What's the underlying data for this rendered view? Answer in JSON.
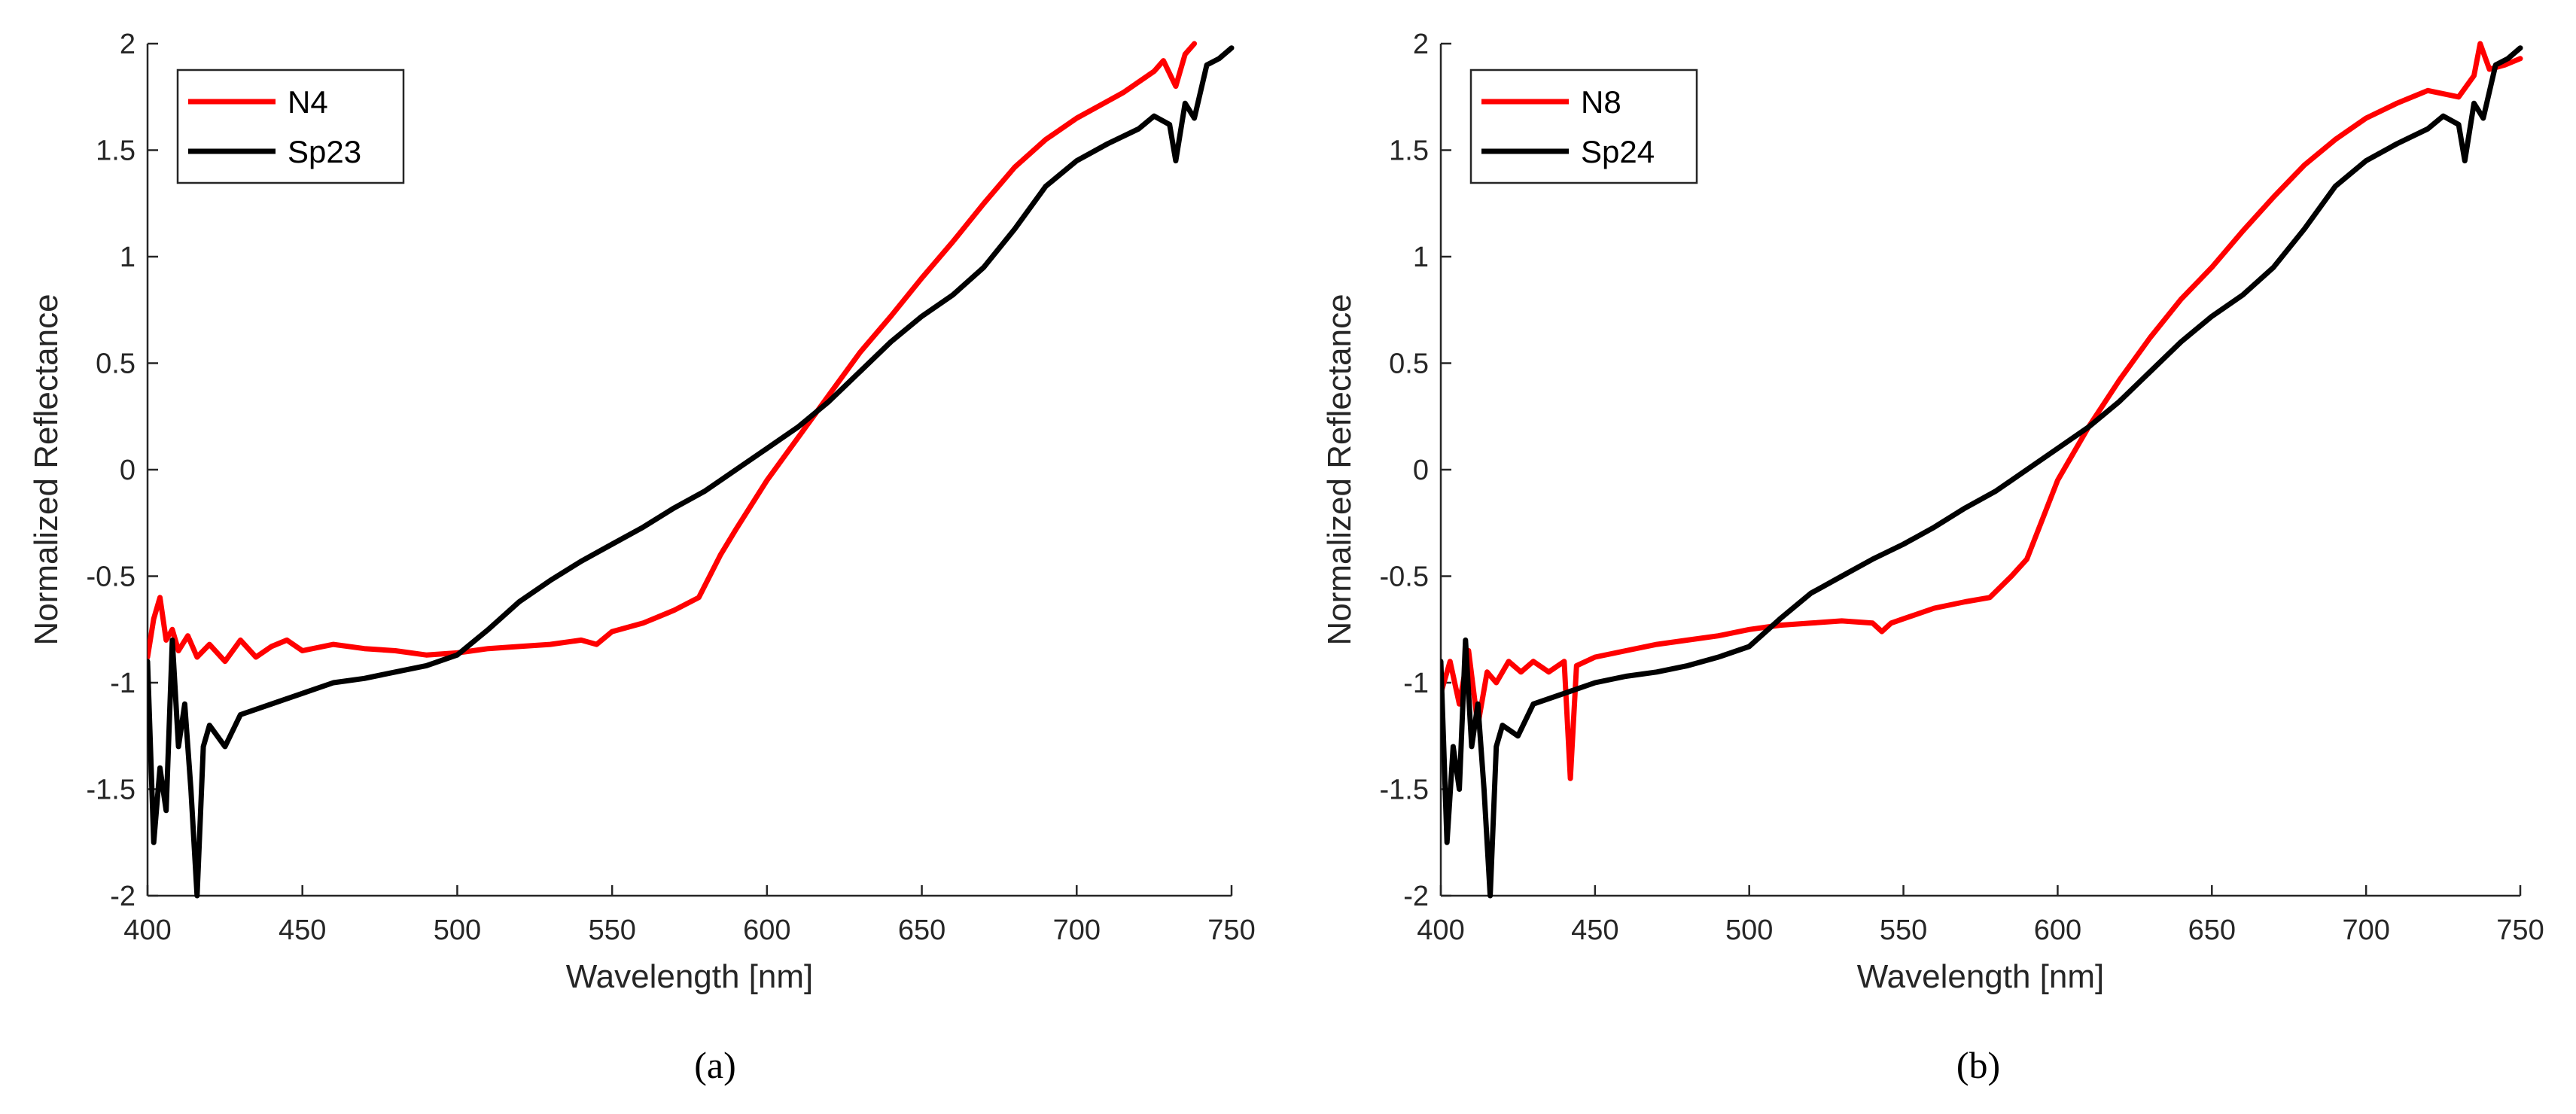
{
  "chart_data": [
    {
      "type": "line",
      "panel_label": "(a)",
      "xlabel": "Wavelength [nm]",
      "ylabel": "Normalized Reflectance",
      "xlim": [
        400,
        750
      ],
      "ylim": [
        -2,
        2
      ],
      "xticks": [
        400,
        450,
        500,
        550,
        600,
        650,
        700,
        750
      ],
      "yticks": [
        -2,
        -1.5,
        -1,
        -0.5,
        0,
        0.5,
        1,
        1.5,
        2
      ],
      "xtick_labels": [
        "400",
        "450",
        "500",
        "550",
        "600",
        "650",
        "700",
        "750"
      ],
      "ytick_labels": [
        "-2",
        "-1.5",
        "-1",
        "-0.5",
        "0",
        "0.5",
        "1",
        "1.5",
        "2"
      ],
      "legend_position": "top-left",
      "series": [
        {
          "name": "N4",
          "color": "#ff0000",
          "x": [
            400,
            402,
            404,
            406,
            408,
            410,
            413,
            416,
            420,
            425,
            430,
            435,
            440,
            445,
            450,
            460,
            470,
            480,
            490,
            500,
            510,
            520,
            530,
            540,
            545,
            550,
            560,
            570,
            578,
            585,
            590,
            600,
            610,
            620,
            630,
            640,
            650,
            660,
            670,
            680,
            690,
            700,
            710,
            715,
            720,
            725,
            728,
            732,
            735,
            738
          ],
          "y": [
            -0.88,
            -0.7,
            -0.6,
            -0.8,
            -0.75,
            -0.85,
            -0.78,
            -0.88,
            -0.82,
            -0.9,
            -0.8,
            -0.88,
            -0.83,
            -0.8,
            -0.85,
            -0.82,
            -0.84,
            -0.85,
            -0.87,
            -0.86,
            -0.84,
            -0.83,
            -0.82,
            -0.8,
            -0.82,
            -0.76,
            -0.72,
            -0.66,
            -0.6,
            -0.4,
            -0.28,
            -0.05,
            0.15,
            0.35,
            0.55,
            0.72,
            0.9,
            1.07,
            1.25,
            1.42,
            1.55,
            1.65,
            1.73,
            1.77,
            1.82,
            1.87,
            1.92,
            1.8,
            1.95,
            2.0
          ]
        },
        {
          "name": "Sp23",
          "color": "#000000",
          "x": [
            400,
            402,
            404,
            406,
            408,
            410,
            412,
            414,
            416,
            418,
            420,
            425,
            430,
            440,
            450,
            460,
            470,
            480,
            490,
            500,
            510,
            520,
            530,
            540,
            550,
            560,
            570,
            580,
            590,
            600,
            610,
            620,
            630,
            640,
            650,
            660,
            670,
            680,
            690,
            700,
            710,
            720,
            725,
            730,
            732,
            735,
            738,
            742,
            746,
            750
          ],
          "y": [
            -0.9,
            -1.75,
            -1.4,
            -1.6,
            -0.8,
            -1.3,
            -1.1,
            -1.5,
            -2.0,
            -1.3,
            -1.2,
            -1.3,
            -1.15,
            -1.1,
            -1.05,
            -1.0,
            -0.98,
            -0.95,
            -0.92,
            -0.87,
            -0.75,
            -0.62,
            -0.52,
            -0.43,
            -0.35,
            -0.27,
            -0.18,
            -0.1,
            0.0,
            0.1,
            0.2,
            0.32,
            0.46,
            0.6,
            0.72,
            0.82,
            0.95,
            1.13,
            1.33,
            1.45,
            1.53,
            1.6,
            1.66,
            1.62,
            1.45,
            1.72,
            1.65,
            1.9,
            1.93,
            1.98
          ]
        }
      ]
    },
    {
      "type": "line",
      "panel_label": "(b)",
      "xlabel": "Wavelength [nm]",
      "ylabel": "Normalized Reflectance",
      "xlim": [
        400,
        750
      ],
      "ylim": [
        -2,
        2
      ],
      "xticks": [
        400,
        450,
        500,
        550,
        600,
        650,
        700,
        750
      ],
      "yticks": [
        -2,
        -1.5,
        -1,
        -0.5,
        0,
        0.5,
        1,
        1.5,
        2
      ],
      "xtick_labels": [
        "400",
        "450",
        "500",
        "550",
        "600",
        "650",
        "700",
        "750"
      ],
      "ytick_labels": [
        "-2",
        "-1.5",
        "-1",
        "-0.5",
        "0",
        "0.5",
        "1",
        "1.5",
        "2"
      ],
      "legend_position": "top-left",
      "series": [
        {
          "name": "N8",
          "color": "#ff0000",
          "x": [
            400,
            403,
            406,
            409,
            412,
            415,
            418,
            422,
            426,
            430,
            435,
            440,
            442,
            444,
            450,
            460,
            470,
            480,
            490,
            500,
            510,
            520,
            530,
            540,
            543,
            546,
            550,
            560,
            570,
            578,
            585,
            590,
            600,
            610,
            620,
            630,
            640,
            650,
            660,
            670,
            680,
            690,
            700,
            710,
            720,
            730,
            735,
            737,
            740,
            745,
            750
          ],
          "y": [
            -1.05,
            -0.9,
            -1.1,
            -0.85,
            -1.2,
            -0.95,
            -1.0,
            -0.9,
            -0.95,
            -0.9,
            -0.95,
            -0.9,
            -1.45,
            -0.92,
            -0.88,
            -0.85,
            -0.82,
            -0.8,
            -0.78,
            -0.75,
            -0.73,
            -0.72,
            -0.71,
            -0.72,
            -0.76,
            -0.72,
            -0.7,
            -0.65,
            -0.62,
            -0.6,
            -0.5,
            -0.42,
            -0.05,
            0.2,
            0.42,
            0.62,
            0.8,
            0.95,
            1.12,
            1.28,
            1.43,
            1.55,
            1.65,
            1.72,
            1.78,
            1.75,
            1.85,
            2.0,
            1.88,
            1.9,
            1.93
          ]
        },
        {
          "name": "Sp24",
          "color": "#000000",
          "x": [
            400,
            402,
            404,
            406,
            408,
            410,
            412,
            414,
            416,
            418,
            420,
            425,
            430,
            440,
            450,
            460,
            470,
            480,
            490,
            500,
            510,
            520,
            530,
            540,
            550,
            560,
            570,
            580,
            590,
            600,
            610,
            620,
            630,
            640,
            650,
            660,
            670,
            680,
            690,
            700,
            710,
            720,
            725,
            730,
            732,
            735,
            738,
            742,
            746,
            750
          ],
          "y": [
            -0.9,
            -1.75,
            -1.3,
            -1.5,
            -0.8,
            -1.3,
            -1.1,
            -1.5,
            -2.0,
            -1.3,
            -1.2,
            -1.25,
            -1.1,
            -1.05,
            -1.0,
            -0.97,
            -0.95,
            -0.92,
            -0.88,
            -0.83,
            -0.7,
            -0.58,
            -0.5,
            -0.42,
            -0.35,
            -0.27,
            -0.18,
            -0.1,
            0.0,
            0.1,
            0.2,
            0.32,
            0.46,
            0.6,
            0.72,
            0.82,
            0.95,
            1.13,
            1.33,
            1.45,
            1.53,
            1.6,
            1.66,
            1.62,
            1.45,
            1.72,
            1.65,
            1.9,
            1.93,
            1.98
          ]
        }
      ]
    }
  ]
}
